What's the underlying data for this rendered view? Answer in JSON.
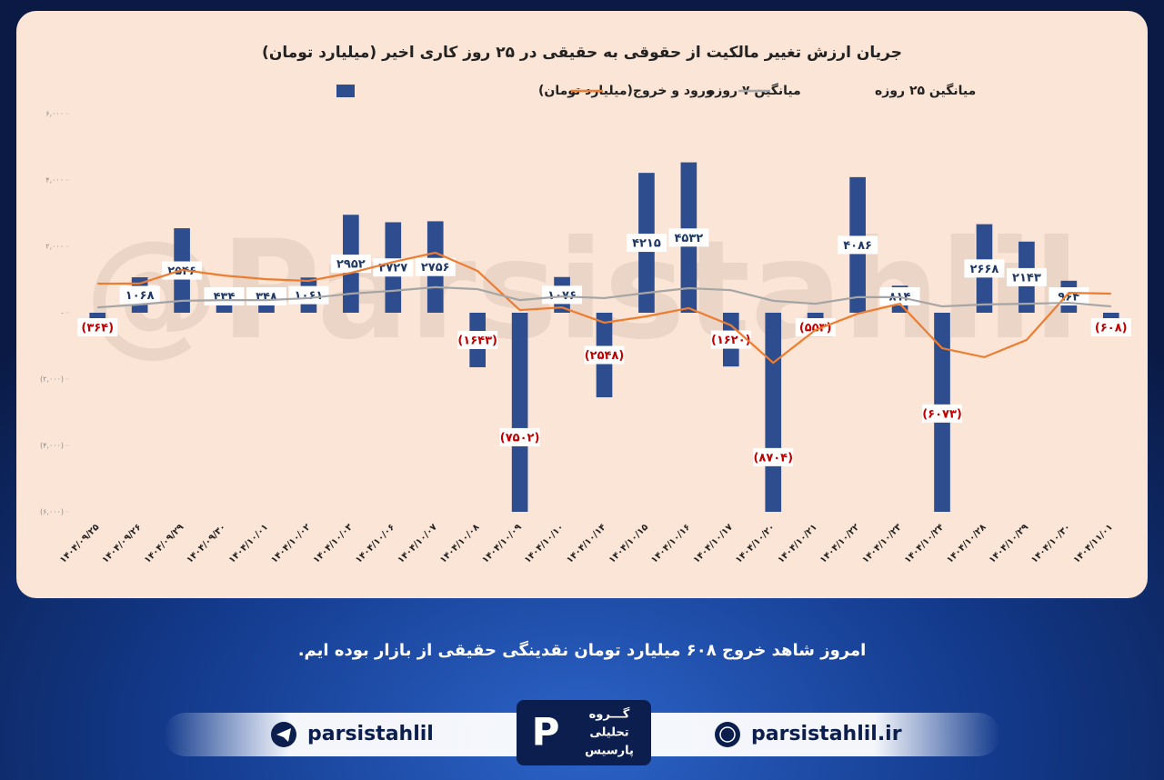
{
  "chart_data": {
    "type": "bar",
    "title": "جریان ارزش تغییر مالکیت از حقوقی به حقیقی در ۲۵ روز کاری اخیر (میلیارد تومان)",
    "watermark": "@Parsistahlil",
    "categories": [
      "۱۴۰۴/۰۹/۲۵",
      "۱۴۰۴/۰۹/۲۶",
      "۱۴۰۴/۰۹/۲۹",
      "۱۴۰۴/۰۹/۳۰",
      "۱۴۰۴/۱۰/۰۱",
      "۱۴۰۴/۱۰/۰۲",
      "۱۴۰۴/۱۰/۰۳",
      "۱۴۰۴/۱۰/۰۶",
      "۱۴۰۴/۱۰/۰۷",
      "۱۴۰۴/۱۰/۰۸",
      "۱۴۰۴/۱۰/۰۹",
      "۱۴۰۴/۱۰/۱۰",
      "۱۴۰۴/۱۰/۱۴",
      "۱۴۰۴/۱۰/۱۵",
      "۱۴۰۴/۱۰/۱۶",
      "۱۴۰۴/۱۰/۱۷",
      "۱۴۰۴/۱۰/۲۰",
      "۱۴۰۴/۱۰/۲۱",
      "۱۴۰۴/۱۰/۲۲",
      "۱۴۰۴/۱۰/۲۳",
      "۱۴۰۴/۱۰/۲۴",
      "۱۴۰۴/۱۰/۲۸",
      "۱۴۰۴/۱۰/۲۹",
      "۱۴۰۴/۱۰/۳۰",
      "۱۴۰۴/۱۱/۰۱"
    ],
    "series": [
      {
        "name": "ورود و خروج(میلیارد تومان)",
        "type": "bar",
        "color": "#2e4d8e",
        "values": [
          -364,
          1068,
          2546,
          434,
          348,
          1061,
          2952,
          2727,
          2756,
          -1643,
          -7502,
          1076,
          -2548,
          4215,
          4532,
          -1620,
          -8704,
          -553,
          4086,
          814,
          -6073,
          2668,
          2143,
          964,
          -608
        ],
        "value_labels": [
          "(۳۶۴)",
          "۱۰۶۸",
          "۲۵۴۶",
          "۴۳۴",
          "۳۴۸",
          "۱۰۶۱",
          "۲۹۵۲",
          "۲۷۲۷",
          "۲۷۵۶",
          "(۱۶۴۳)",
          "(۷۵۰۲)",
          "۱۰۷۶",
          "(۲۵۴۸)",
          "۴۲۱۵",
          "۴۵۳۲",
          "(۱۶۲۰)",
          "(۸۷۰۴)",
          "(۵۵۳)",
          "۴۰۸۶",
          "۸۱۴",
          "(۶۰۷۳)",
          "۲۶۶۸",
          "۲۱۴۳",
          "۹۶۴",
          "(۶۰۸)"
        ]
      },
      {
        "name": "میانگین ۷ روزه",
        "type": "line",
        "color": "#ed7d31",
        "values": [
          877,
          880,
          1290,
          1120,
          1010,
          960,
          1200,
          1530,
          1810,
          1260,
          80,
          160,
          -300,
          -110,
          140,
          -380,
          -1510,
          -520,
          -30,
          270,
          -1070,
          -1340,
          -820,
          600,
          575
        ]
      },
      {
        "name": "میانگین ۲۵ روزه",
        "type": "line",
        "color": "#a5a5a5",
        "values": [
          160,
          250,
          360,
          380,
          380,
          440,
          575,
          660,
          770,
          710,
          380,
          490,
          440,
          600,
          740,
          680,
          360,
          270,
          470,
          470,
          190,
          250,
          270,
          300,
          190
        ]
      }
    ],
    "ylim": [
      -6000,
      6000
    ],
    "yticks": [
      {
        "value": 6000,
        "label": "۶,۰۰۰"
      },
      {
        "value": 4000,
        "label": "۴,۰۰۰"
      },
      {
        "value": 2000,
        "label": "۲,۰۰۰"
      },
      {
        "value": 0,
        "label": "-"
      },
      {
        "value": -2000,
        "label": "(۲,۰۰۰)"
      },
      {
        "value": -4000,
        "label": "(۴,۰۰۰)"
      },
      {
        "value": -6000,
        "label": "(۶,۰۰۰)"
      }
    ],
    "grid": false
  },
  "caption": "امروز شاهد خروج ۶۰۸ میلیارد تومان نقدینگی حقیقی از بازار بوده ایم.",
  "footer": {
    "telegram": "parsistahlil",
    "website": "parsistahlil.ir",
    "logo": [
      "گـــروه",
      "تحلیلی",
      "پارسیس"
    ]
  }
}
